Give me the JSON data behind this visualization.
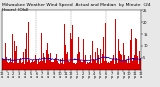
{
  "n_points": 1440,
  "y_min": 0,
  "y_max": 25,
  "yticks": [
    5,
    10,
    15,
    20,
    25
  ],
  "ytick_labels": [
    "5",
    "10",
    "15",
    "20",
    "25"
  ],
  "bar_color": "#dd0000",
  "median_color": "#0000cc",
  "background_color": "#e8e8e8",
  "plot_bg": "#ffffff",
  "legend_actual": "Actual",
  "legend_median": "Median",
  "title_fontsize": 3.2,
  "tick_fontsize": 2.5,
  "seed": 42,
  "dashed_every_n_hours": 6,
  "x_label_every_n_hours": 1
}
